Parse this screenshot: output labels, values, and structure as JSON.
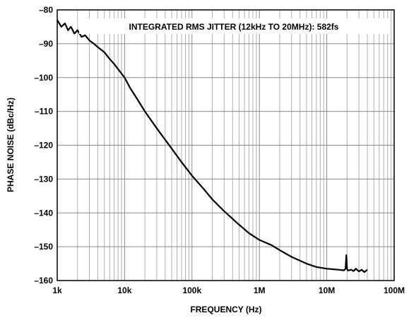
{
  "chart_data": {
    "type": "line",
    "title": "",
    "annotation": "INTEGRATED RMS JITTER (12kHz TO 20MHz): 582fs",
    "xlabel": "FREQUENCY (Hz)",
    "ylabel": "PHASE NOISE (dBc/Hz)",
    "x_scale": "log",
    "xlim": [
      1000,
      100000000
    ],
    "ylim": [
      -160,
      -80
    ],
    "grid": true,
    "x_ticks": [
      {
        "value": 1000,
        "label": "1k"
      },
      {
        "value": 10000,
        "label": "10k"
      },
      {
        "value": 100000,
        "label": "100k"
      },
      {
        "value": 1000000,
        "label": "1M"
      },
      {
        "value": 10000000,
        "label": "10M"
      },
      {
        "value": 100000000,
        "label": "100M"
      }
    ],
    "y_ticks": [
      {
        "value": -80,
        "label": "–80"
      },
      {
        "value": -90,
        "label": "–90"
      },
      {
        "value": -100,
        "label": "–100"
      },
      {
        "value": -110,
        "label": "–110"
      },
      {
        "value": -120,
        "label": "–120"
      },
      {
        "value": -130,
        "label": "–130"
      },
      {
        "value": -140,
        "label": "–140"
      },
      {
        "value": -150,
        "label": "–150"
      },
      {
        "value": -160,
        "label": "–160"
      }
    ],
    "series": [
      {
        "color": "#000000",
        "x": [
          1000,
          1150,
          1300,
          1450,
          1600,
          1800,
          2000,
          2300,
          2600,
          3000,
          3500,
          4000,
          5000,
          6000,
          7000,
          8000,
          10000,
          12000,
          15000,
          20000,
          30000,
          50000,
          70000,
          100000,
          150000,
          200000,
          300000,
          500000,
          700000,
          1000000,
          1500000,
          2000000,
          3000000,
          5000000,
          7000000,
          10000000,
          15000000,
          18000000,
          19000000,
          19500000,
          20000000,
          20500000,
          21000000,
          23000000,
          25000000,
          27000000,
          30000000,
          33000000,
          36000000,
          40000000
        ],
        "y": [
          -83,
          -85,
          -84,
          -86,
          -85,
          -87,
          -86,
          -88,
          -87.5,
          -89,
          -90,
          -91,
          -92.5,
          -94.5,
          -96,
          -97.5,
          -100,
          -103,
          -106,
          -110,
          -115,
          -121,
          -125,
          -129,
          -133,
          -136,
          -139.5,
          -143.5,
          -146,
          -148,
          -149.5,
          -151,
          -153,
          -155,
          -156,
          -156.5,
          -156.8,
          -157,
          -156.5,
          -152.5,
          -156.5,
          -157,
          -157,
          -156.8,
          -157.2,
          -156.5,
          -157.3,
          -156.8,
          -157.5,
          -156.8
        ]
      }
    ]
  }
}
